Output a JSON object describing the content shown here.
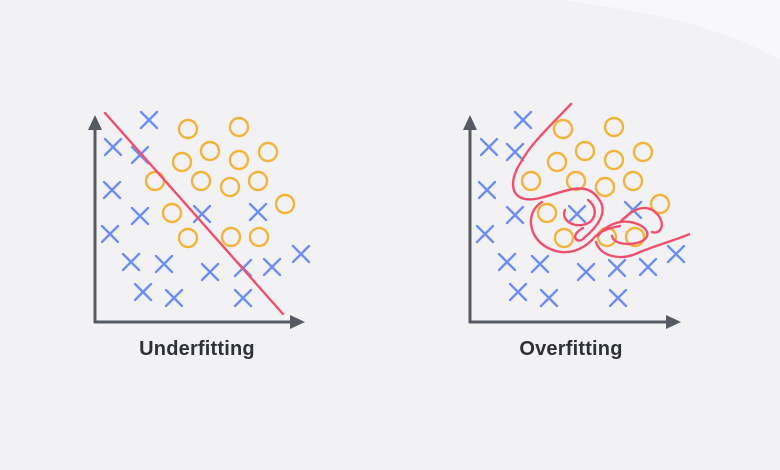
{
  "panels": [
    {
      "id": "underfitting",
      "label": "Underfitting"
    },
    {
      "id": "overfitting",
      "label": "Overfitting"
    }
  ],
  "colors": {
    "background": "#f2f2f4",
    "axis": "#555a63",
    "cross": "#6f8ff0",
    "circle": "#f3b43c",
    "boundary": "#f0506e",
    "caption": "#2f3138"
  },
  "icons": {
    "class_a_marker": "x-mark-icon",
    "class_b_marker": "circle-marker-icon",
    "axis_arrow": "arrowhead-icon"
  }
}
